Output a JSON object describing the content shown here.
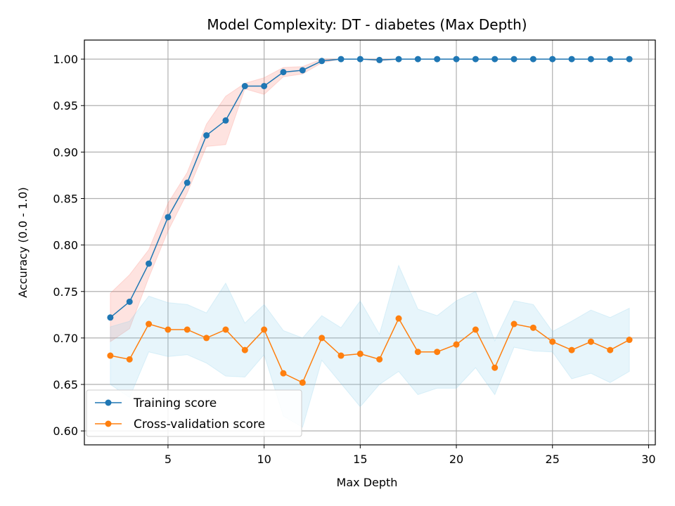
{
  "chart_data": {
    "type": "line",
    "title": "Model Complexity: DT - diabetes (Max Depth)",
    "xlabel": "Max Depth",
    "ylabel": "Accuracy (0.0 - 1.0)",
    "xlim": [
      0.65,
      30.35
    ],
    "ylim": [
      0.585,
      1.0205
    ],
    "xticks": [
      5,
      10,
      15,
      20,
      25,
      30
    ],
    "yticks": [
      0.6,
      0.65,
      0.7,
      0.75,
      0.8,
      0.85,
      0.9,
      0.95,
      1.0
    ],
    "xtick_labels": [
      "5",
      "10",
      "15",
      "20",
      "25",
      "30"
    ],
    "ytick_labels": [
      "0.60",
      "0.65",
      "0.70",
      "0.75",
      "0.80",
      "0.85",
      "0.90",
      "0.95",
      "1.00"
    ],
    "grid": true,
    "legend_position": "lower-left",
    "x": [
      2,
      3,
      4,
      5,
      6,
      7,
      8,
      9,
      10,
      11,
      12,
      13,
      14,
      15,
      16,
      17,
      18,
      19,
      20,
      21,
      22,
      23,
      24,
      25,
      26,
      27,
      28,
      29
    ],
    "series": [
      {
        "name": "Training score",
        "color": "#1f77b4",
        "band_color": "#fa8072",
        "values": [
          0.722,
          0.739,
          0.78,
          0.83,
          0.867,
          0.918,
          0.934,
          0.971,
          0.971,
          0.986,
          0.988,
          0.998,
          1.0,
          1.0,
          0.999,
          1.0,
          1.0,
          1.0,
          1.0,
          1.0,
          1.0,
          1.0,
          1.0,
          1.0,
          1.0,
          1.0,
          1.0,
          1.0
        ],
        "band_upper": [
          0.748,
          0.768,
          0.795,
          0.845,
          0.878,
          0.93,
          0.96,
          0.974,
          0.98,
          0.991,
          0.992,
          1.0,
          1.0,
          1.0,
          1.0,
          1.0,
          1.0,
          1.0,
          1.0,
          1.0,
          1.0,
          1.0,
          1.0,
          1.0,
          1.0,
          1.0,
          1.0,
          1.0
        ],
        "band_lower": [
          0.696,
          0.71,
          0.765,
          0.815,
          0.856,
          0.906,
          0.908,
          0.968,
          0.962,
          0.981,
          0.984,
          0.996,
          1.0,
          1.0,
          0.998,
          1.0,
          1.0,
          1.0,
          1.0,
          1.0,
          1.0,
          1.0,
          1.0,
          1.0,
          1.0,
          1.0,
          1.0,
          1.0
        ]
      },
      {
        "name": "Cross-validation score",
        "color": "#ff7f0e",
        "band_color": "#87ceeb",
        "values": [
          0.681,
          0.677,
          0.715,
          0.709,
          0.709,
          0.7,
          0.709,
          0.687,
          0.709,
          0.662,
          0.652,
          0.7,
          0.681,
          0.683,
          0.677,
          0.721,
          0.685,
          0.685,
          0.693,
          0.709,
          0.668,
          0.715,
          0.711,
          0.696,
          0.687,
          0.696,
          0.687,
          0.698
        ],
        "band_upper": [
          0.712,
          0.718,
          0.745,
          0.738,
          0.736,
          0.727,
          0.759,
          0.716,
          0.736,
          0.708,
          0.7,
          0.724,
          0.711,
          0.74,
          0.704,
          0.778,
          0.731,
          0.724,
          0.74,
          0.75,
          0.697,
          0.74,
          0.736,
          0.707,
          0.718,
          0.73,
          0.722,
          0.732
        ],
        "band_lower": [
          0.65,
          0.636,
          0.685,
          0.68,
          0.682,
          0.673,
          0.659,
          0.658,
          0.682,
          0.616,
          0.604,
          0.676,
          0.651,
          0.626,
          0.65,
          0.664,
          0.639,
          0.646,
          0.646,
          0.668,
          0.639,
          0.69,
          0.686,
          0.685,
          0.656,
          0.662,
          0.652,
          0.664
        ]
      }
    ]
  }
}
